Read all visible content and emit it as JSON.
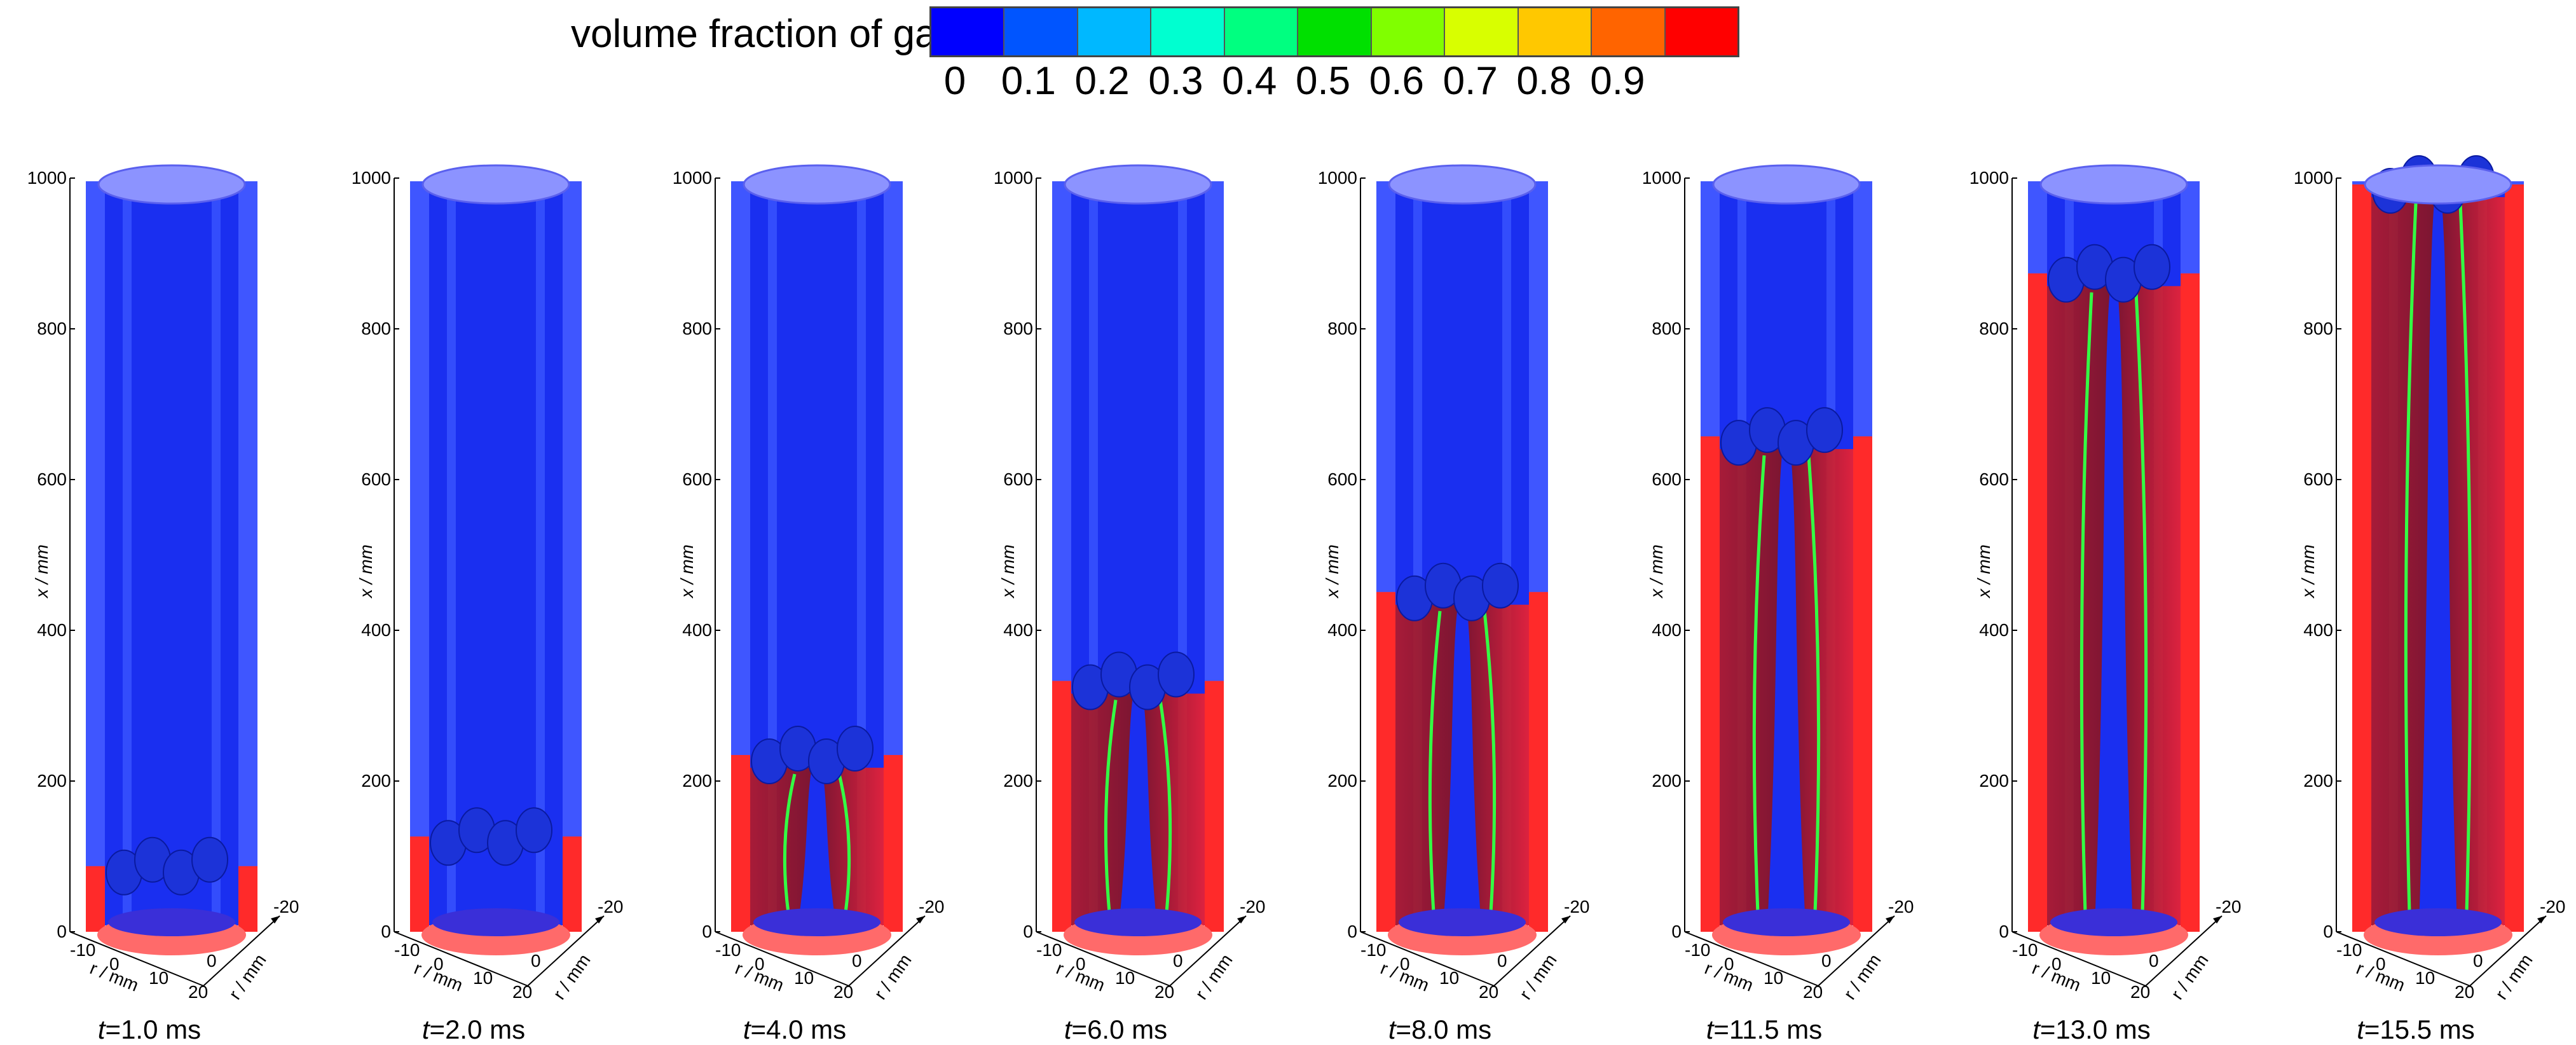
{
  "colorbar": {
    "title": "volume fraction of gas",
    "colors": [
      "#0000ff",
      "#0055ff",
      "#00b8ff",
      "#00ffd0",
      "#00ff80",
      "#00e000",
      "#80ff00",
      "#d8ff00",
      "#ffc800",
      "#ff6400",
      "#ff0000"
    ],
    "ticks": [
      "0",
      "0.1",
      "0.2",
      "0.3",
      "0.4",
      "0.5",
      "0.6",
      "0.7",
      "0.8",
      "0.9"
    ]
  },
  "axes": {
    "x_ticks": [
      "0",
      "200",
      "400",
      "600",
      "800",
      "1000"
    ],
    "x_label": "x / mm",
    "r_ticks_front": [
      "-10",
      "0",
      "10",
      "20"
    ],
    "r_ticks_side": [
      "0",
      "-20"
    ],
    "r_label": "r / mm"
  },
  "panels": [
    {
      "time_prefix": "t",
      "time_rest": "=1.0 ms",
      "front_fraction": 0.08
    },
    {
      "time_prefix": "t",
      "time_rest": "=2.0 ms",
      "front_fraction": 0.12
    },
    {
      "time_prefix": "t",
      "time_rest": "=4.0 ms",
      "front_fraction": 0.23
    },
    {
      "time_prefix": "t",
      "time_rest": "=6.0 ms",
      "front_fraction": 0.33
    },
    {
      "time_prefix": "t",
      "time_rest": "=8.0 ms",
      "front_fraction": 0.45
    },
    {
      "time_prefix": "t",
      "time_rest": "=11.5 ms",
      "front_fraction": 0.66
    },
    {
      "time_prefix": "t",
      "time_rest": "=13.0 ms",
      "front_fraction": 0.88
    },
    {
      "time_prefix": "t",
      "time_rest": "=15.5 ms",
      "front_fraction": 1.0
    }
  ]
}
